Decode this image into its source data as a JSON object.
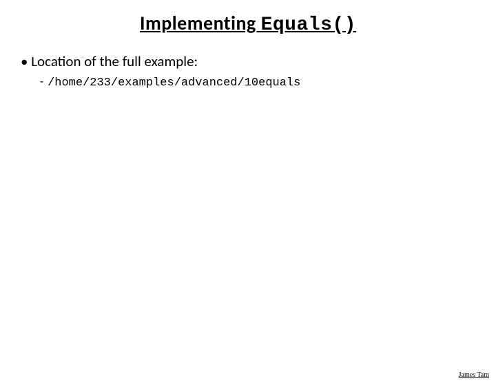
{
  "slide": {
    "title_prefix": "Implementing ",
    "title_code": "Equals()",
    "bullet_label": "• Location of the full example:",
    "sub_bullet_dash": "-",
    "sub_bullet_path": "/home/233/examples/advanced/10equals",
    "author": "James Tam"
  },
  "styling": {
    "background_color": "#ffffff",
    "title_fontsize": 28,
    "bullet_fontsize": 21,
    "sub_bullet_fontsize": 17,
    "author_fontsize": 10,
    "text_color": "#000000",
    "body_font": "Calibri",
    "code_font": "Courier New",
    "author_font": "Times New Roman"
  }
}
